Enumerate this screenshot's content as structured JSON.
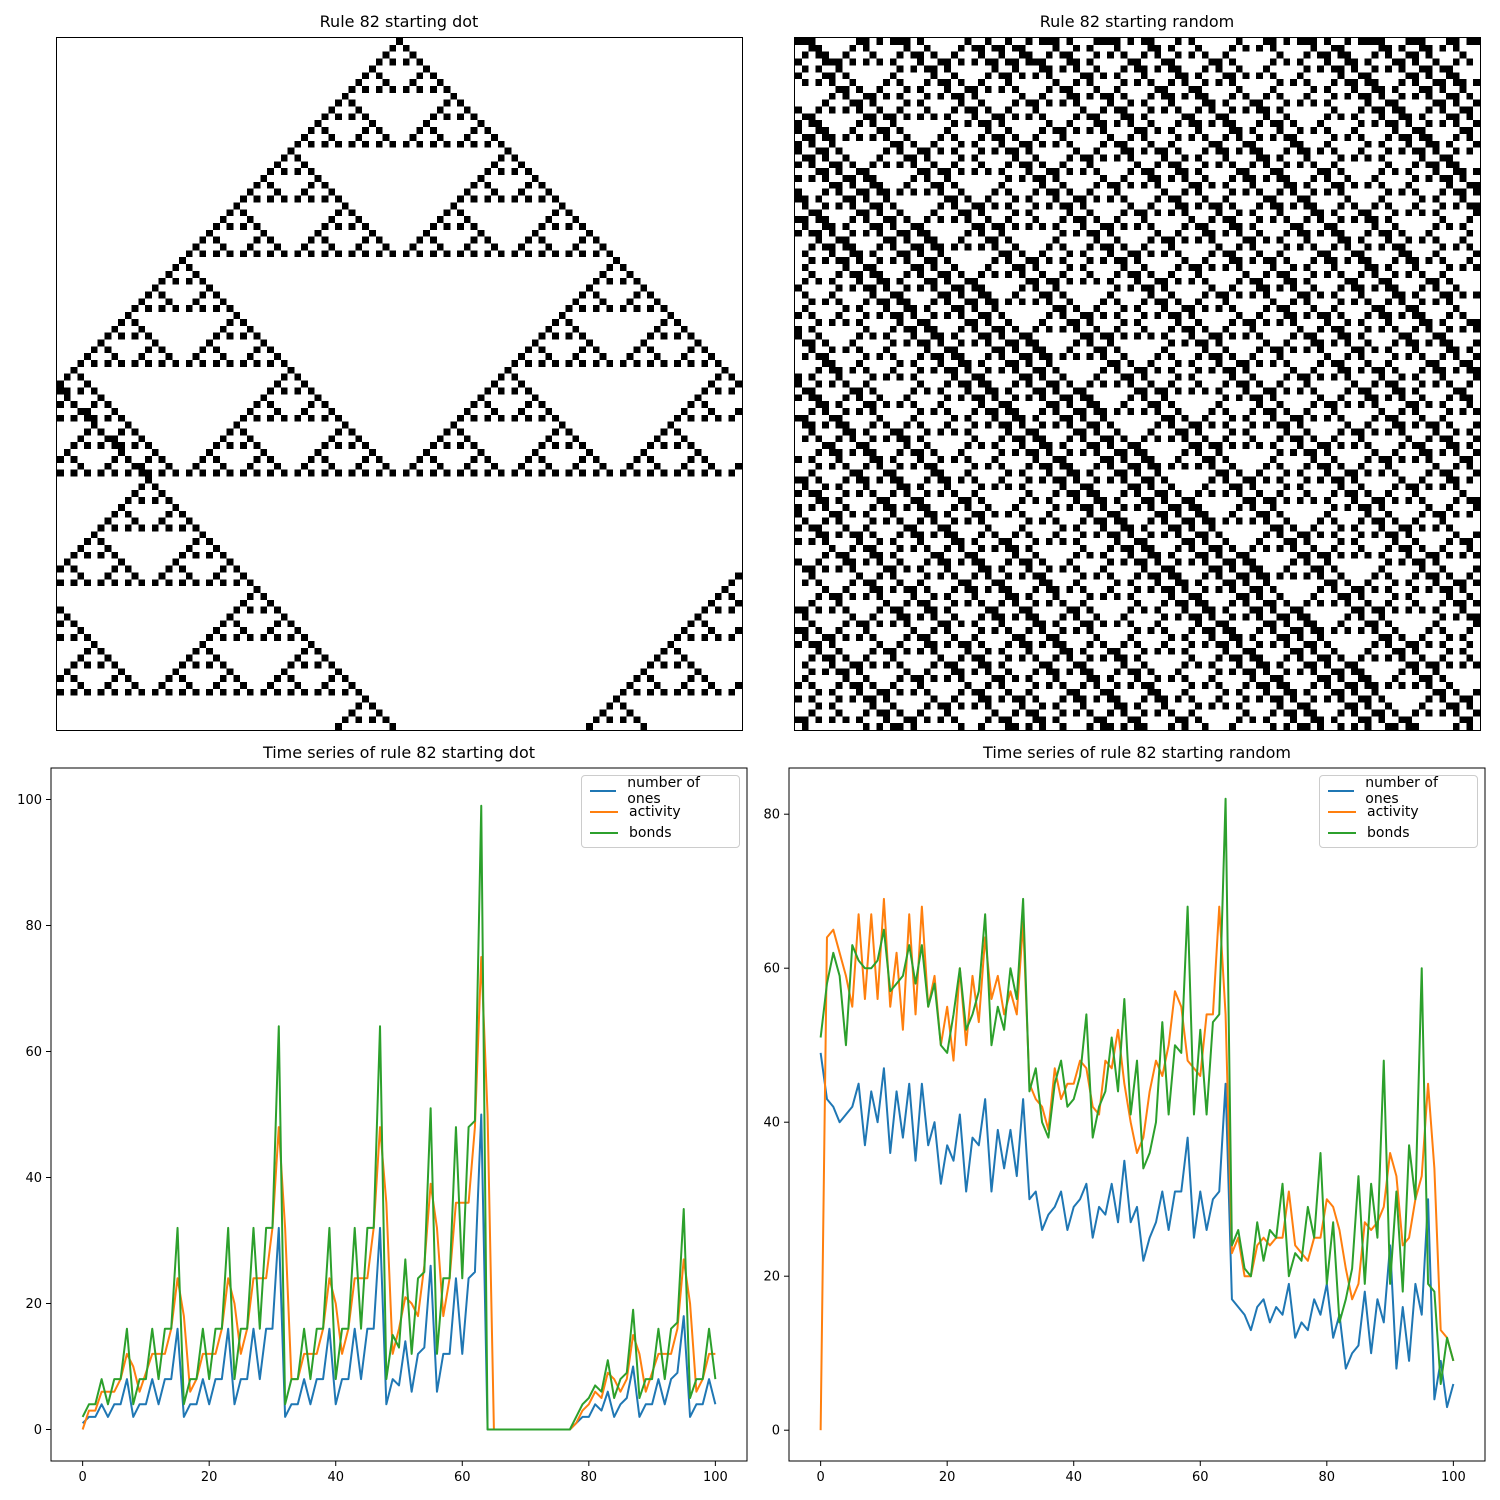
{
  "panels": {
    "ca_dot": {
      "title": "Rule 82 starting dot"
    },
    "ca_random": {
      "title": "Rule 82 starting random"
    }
  },
  "colors": {
    "number_of_ones": "#1f77b4",
    "activity": "#ff7f0e",
    "bonds": "#2ca02c"
  },
  "chart_data": [
    {
      "type": "line",
      "title": "Time series of rule 82 starting dot",
      "xlabel": "",
      "ylabel": "",
      "xlim": [
        -5,
        105
      ],
      "ylim": [
        -5,
        105
      ],
      "xticks": [
        0,
        20,
        40,
        60,
        80,
        100
      ],
      "yticks": [
        0,
        20,
        40,
        60,
        80,
        100
      ],
      "legend": "top-right",
      "grid": false,
      "x": [
        0,
        1,
        2,
        3,
        4,
        5,
        6,
        7,
        8,
        9,
        10,
        11,
        12,
        13,
        14,
        15,
        16,
        17,
        18,
        19,
        20,
        21,
        22,
        23,
        24,
        25,
        26,
        27,
        28,
        29,
        30,
        31,
        32,
        33,
        34,
        35,
        36,
        37,
        38,
        39,
        40,
        41,
        42,
        43,
        44,
        45,
        46,
        47,
        48,
        49,
        50,
        51,
        52,
        53,
        54,
        55,
        56,
        57,
        58,
        59,
        60,
        61,
        62,
        63,
        64,
        65,
        66,
        67,
        68,
        69,
        70,
        71,
        72,
        73,
        74,
        75,
        76,
        77,
        78,
        79,
        80,
        81,
        82,
        83,
        84,
        85,
        86,
        87,
        88,
        89,
        90,
        91,
        92,
        93,
        94,
        95,
        96,
        97,
        98,
        99,
        100
      ],
      "series": [
        {
          "name": "number of ones",
          "values": [
            1,
            2,
            2,
            4,
            2,
            4,
            4,
            8,
            2,
            4,
            4,
            8,
            4,
            8,
            8,
            16,
            2,
            4,
            4,
            8,
            4,
            8,
            8,
            16,
            4,
            8,
            8,
            16,
            8,
            16,
            16,
            32,
            2,
            4,
            4,
            8,
            4,
            8,
            8,
            16,
            4,
            8,
            8,
            16,
            8,
            16,
            16,
            32,
            4,
            8,
            7,
            14,
            6,
            12,
            13,
            26,
            6,
            12,
            12,
            24,
            12,
            24,
            25,
            50,
            0,
            0,
            0,
            0,
            0,
            0,
            0,
            0,
            0,
            0,
            0,
            0,
            0,
            0,
            1,
            2,
            2,
            4,
            3,
            6,
            2,
            4,
            5,
            10,
            2,
            4,
            4,
            8,
            4,
            8,
            9,
            18,
            2,
            4,
            4,
            8,
            4
          ]
        },
        {
          "name": "activity",
          "values": [
            0,
            3,
            3,
            6,
            6,
            6,
            8,
            12,
            10,
            6,
            9,
            12,
            12,
            12,
            16,
            24,
            18,
            6,
            8,
            12,
            12,
            12,
            16,
            24,
            20,
            12,
            16,
            24,
            24,
            24,
            32,
            48,
            32,
            8,
            8,
            12,
            12,
            12,
            16,
            24,
            20,
            12,
            16,
            24,
            24,
            24,
            32,
            48,
            36,
            12,
            16,
            21,
            20,
            18,
            26,
            39,
            32,
            18,
            24,
            36,
            36,
            36,
            48,
            75,
            50,
            0,
            0,
            0,
            0,
            0,
            0,
            0,
            0,
            0,
            0,
            0,
            0,
            0,
            1,
            3,
            4,
            6,
            5,
            9,
            8,
            6,
            8,
            15,
            12,
            6,
            9,
            12,
            12,
            12,
            16,
            27,
            20,
            6,
            8,
            12,
            12
          ]
        },
        {
          "name": "bonds",
          "values": [
            2,
            4,
            4,
            8,
            4,
            8,
            8,
            16,
            4,
            8,
            8,
            16,
            8,
            16,
            16,
            32,
            4,
            8,
            8,
            16,
            8,
            16,
            16,
            32,
            8,
            16,
            16,
            32,
            16,
            32,
            32,
            64,
            4,
            8,
            8,
            16,
            8,
            16,
            16,
            32,
            8,
            16,
            16,
            32,
            16,
            32,
            32,
            64,
            8,
            15,
            13,
            27,
            12,
            24,
            25,
            51,
            12,
            24,
            24,
            48,
            24,
            48,
            49,
            99,
            0,
            0,
            0,
            0,
            0,
            0,
            0,
            0,
            0,
            0,
            0,
            0,
            0,
            0,
            2,
            4,
            5,
            7,
            6,
            11,
            5,
            8,
            9,
            19,
            5,
            8,
            8,
            16,
            8,
            16,
            17,
            35,
            5,
            8,
            8,
            16,
            8
          ]
        }
      ]
    },
    {
      "type": "line",
      "title": "Time series of rule 82 starting random",
      "xlabel": "",
      "ylabel": "",
      "xlim": [
        -5,
        105
      ],
      "ylim": [
        -4,
        86
      ],
      "xticks": [
        0,
        20,
        40,
        60,
        80,
        100
      ],
      "yticks": [
        0,
        20,
        40,
        60,
        80
      ],
      "legend": "top-right",
      "grid": false,
      "x": [
        0,
        1,
        2,
        3,
        4,
        5,
        6,
        7,
        8,
        9,
        10,
        11,
        12,
        13,
        14,
        15,
        16,
        17,
        18,
        19,
        20,
        21,
        22,
        23,
        24,
        25,
        26,
        27,
        28,
        29,
        30,
        31,
        32,
        33,
        34,
        35,
        36,
        37,
        38,
        39,
        40,
        41,
        42,
        43,
        44,
        45,
        46,
        47,
        48,
        49,
        50,
        51,
        52,
        53,
        54,
        55,
        56,
        57,
        58,
        59,
        60,
        61,
        62,
        63,
        64,
        65,
        66,
        67,
        68,
        69,
        70,
        71,
        72,
        73,
        74,
        75,
        76,
        77,
        78,
        79,
        80,
        81,
        82,
        83,
        84,
        85,
        86,
        87,
        88,
        89,
        90,
        91,
        92,
        93,
        94,
        95,
        96,
        97,
        98,
        99,
        100
      ],
      "series": [
        {
          "name": "number of ones",
          "values": [
            49,
            43,
            42,
            40,
            41,
            42,
            45,
            37,
            44,
            40,
            47,
            36,
            44,
            38,
            45,
            35,
            45,
            37,
            40,
            32,
            37,
            35,
            41,
            31,
            38,
            37,
            43,
            31,
            39,
            34,
            39,
            33,
            43,
            30,
            31,
            26,
            28,
            29,
            31,
            26,
            29,
            30,
            32,
            25,
            29,
            28,
            32,
            27,
            35,
            27,
            29,
            22,
            25,
            27,
            31,
            26,
            31,
            31,
            38,
            25,
            31,
            26,
            30,
            31,
            45,
            17,
            16,
            15,
            13,
            16,
            17,
            14,
            16,
            15,
            19,
            12,
            14,
            13,
            17,
            15,
            19,
            12,
            15,
            8,
            10,
            11,
            18,
            10,
            17,
            14,
            24,
            8,
            16,
            9,
            19,
            15,
            30,
            4,
            9,
            3,
            6
          ]
        },
        {
          "name": "activity",
          "values": [
            0,
            64,
            65,
            62,
            59,
            55,
            67,
            56,
            67,
            56,
            69,
            55,
            62,
            52,
            67,
            54,
            68,
            55,
            59,
            50,
            55,
            48,
            60,
            50,
            59,
            53,
            64,
            56,
            59,
            54,
            57,
            54,
            66,
            45,
            43,
            42,
            39,
            47,
            43,
            45,
            45,
            48,
            47,
            42,
            41,
            48,
            47,
            52,
            45,
            40,
            36,
            38,
            44,
            48,
            46,
            50,
            57,
            55,
            48,
            47,
            46,
            54,
            54,
            68,
            54,
            23,
            25,
            20,
            20,
            24,
            25,
            24,
            25,
            25,
            31,
            24,
            23,
            22,
            25,
            25,
            30,
            29,
            26,
            21,
            17,
            19,
            27,
            26,
            27,
            29,
            36,
            33,
            24,
            25,
            30,
            33,
            45,
            34,
            13,
            12,
            9
          ]
        },
        {
          "name": "bonds",
          "values": [
            51,
            58,
            62,
            59,
            50,
            63,
            61,
            60,
            60,
            61,
            65,
            57,
            58,
            59,
            63,
            58,
            63,
            55,
            58,
            50,
            49,
            54,
            60,
            52,
            54,
            57,
            67,
            50,
            55,
            52,
            60,
            56,
            69,
            44,
            47,
            40,
            38,
            45,
            48,
            42,
            43,
            46,
            54,
            38,
            42,
            44,
            51,
            44,
            56,
            41,
            48,
            34,
            36,
            40,
            53,
            41,
            50,
            49,
            68,
            41,
            52,
            41,
            53,
            54,
            82,
            24,
            26,
            21,
            20,
            27,
            22,
            26,
            25,
            32,
            20,
            23,
            22,
            29,
            25,
            36,
            19,
            27,
            14,
            17,
            21,
            33,
            19,
            32,
            25,
            48,
            19,
            31,
            18,
            37,
            30,
            60,
            19,
            18,
            6,
            12,
            9
          ]
        }
      ]
    }
  ]
}
